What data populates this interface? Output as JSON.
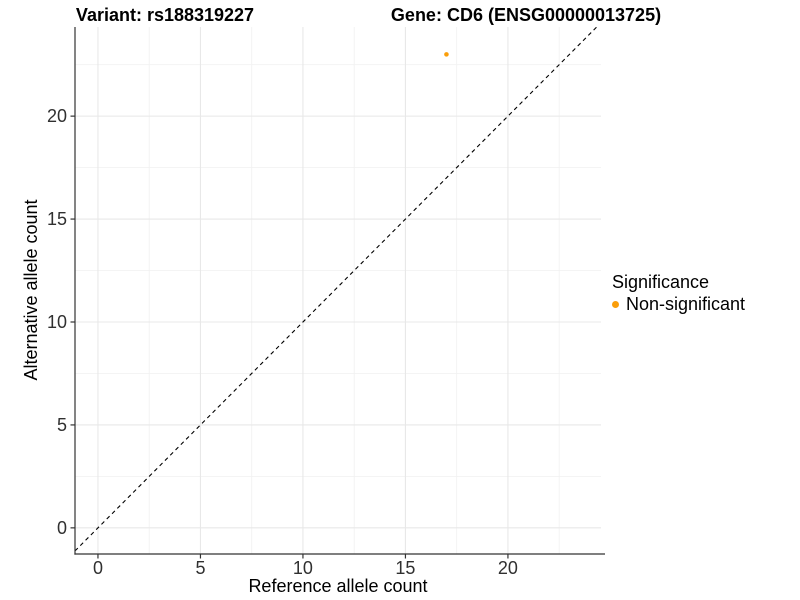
{
  "titles": {
    "variant": "Variant: rs188319227",
    "gene": "Gene: CD6 (ENSG00000013725)"
  },
  "chart_data": {
    "type": "scatter",
    "xlabel": "Reference allele count",
    "ylabel": "Alternative allele count",
    "xlim": [
      -1.12,
      24.54
    ],
    "ylim": [
      -1.27,
      24.33
    ],
    "x_ticks": [
      0,
      5,
      10,
      15,
      20
    ],
    "y_ticks": [
      0,
      5,
      10,
      15,
      20
    ],
    "x_minor_ticks": [
      2.5,
      7.5,
      12.5,
      17.5,
      22.5
    ],
    "y_minor_ticks": [
      2.5,
      7.5,
      12.5,
      17.5,
      22.5
    ],
    "grid": true,
    "identity_line": {
      "equation": "y = x",
      "style": "dashed",
      "color": "#000000"
    },
    "series": [
      {
        "name": "Non-significant",
        "color": "#FA9E0A",
        "points": [
          {
            "x": 17,
            "y": 23
          }
        ]
      }
    ],
    "legend": {
      "title": "Significance",
      "position": "right",
      "items": [
        {
          "label": "Non-significant",
          "color": "#FA9E0A"
        }
      ]
    },
    "colors": {
      "background": "#FFFFFF",
      "grid_major": "#E8E8E8",
      "grid_minor": "#F2F2F2",
      "axis_line": "#333333",
      "tick_mark": "#333333",
      "tick_text": "#303030"
    }
  }
}
